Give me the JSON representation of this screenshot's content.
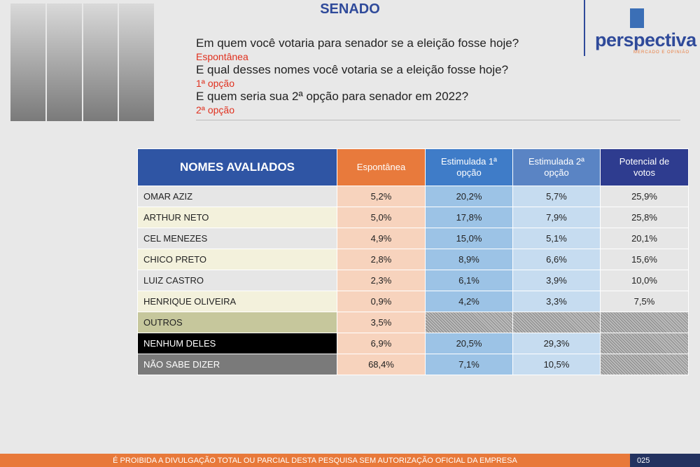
{
  "header": {
    "title": "SENADO"
  },
  "questions": [
    {
      "text": "Em quem você votaria para senador se a eleição fosse hoje?",
      "tag": "Espontânea"
    },
    {
      "text": "E qual desses nomes você votaria se a eleição fosse hoje?",
      "tag": "1ª opção"
    },
    {
      "text": "E quem seria sua 2ª opção para senador em 2022?",
      "tag": "2ª opção"
    }
  ],
  "logo": {
    "name": "perspectiva",
    "tagline": "MERCADO E OPINIÃO"
  },
  "table": {
    "columns": [
      "NOMES AVALIADOS",
      "Espontânea",
      "Estimulada 1ª opção",
      "Estimulada 2ª opção",
      "Potencial de votos"
    ],
    "rows": [
      [
        "OMAR AZIZ",
        "5,2%",
        "20,2%",
        "5,7%",
        "25,9%"
      ],
      [
        "ARTHUR NETO",
        "5,0%",
        "17,8%",
        "7,9%",
        "25,8%"
      ],
      [
        "CEL MENEZES",
        "4,9%",
        "15,0%",
        "5,1%",
        "20,1%"
      ],
      [
        "CHICO PRETO",
        "2,8%",
        "8,9%",
        "6,6%",
        "15,6%"
      ],
      [
        "LUIZ CASTRO",
        "2,3%",
        "6,1%",
        "3,9%",
        "10,0%"
      ],
      [
        "HENRIQUE OLIVEIRA",
        "0,9%",
        "4,2%",
        "3,3%",
        "7,5%"
      ],
      [
        "OUTROS",
        "3,5%",
        null,
        null,
        null
      ],
      [
        "NENHUM DELES",
        "6,9%",
        "20,5%",
        "29,3%",
        null
      ],
      [
        "NÃO SABE DIZER",
        "68,4%",
        "7,1%",
        "10,5%",
        null
      ]
    ]
  },
  "footer": {
    "text": "É PROIBIDA A DIVULGAÇÃO TOTAL OU PARCIAL DESTA PESQUISA SEM AUTORIZAÇÃO OFICIAL DA EMPRESA",
    "page": "025"
  }
}
